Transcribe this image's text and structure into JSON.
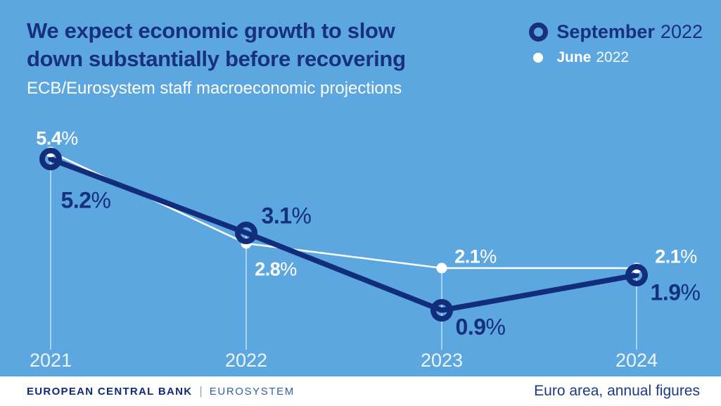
{
  "title": {
    "line1": "We expect economic growth to slow",
    "line2": "down substantially before recovering"
  },
  "subtitle": "ECB/Eurosystem staff macroeconomic projections",
  "legend": {
    "september": {
      "label": "September",
      "year": "2022"
    },
    "june": {
      "label": "June",
      "year": "2022"
    }
  },
  "chart_data": {
    "type": "line",
    "categories": [
      "2021",
      "2022",
      "2023",
      "2024"
    ],
    "series": [
      {
        "name": "September 2022",
        "marker": "ring",
        "color": "#122d7c",
        "values": [
          5.2,
          3.1,
          0.9,
          1.9
        ],
        "labels": [
          "5.2%",
          "3.1%",
          "0.9%",
          "1.9%"
        ]
      },
      {
        "name": "June 2022",
        "marker": "dot",
        "color": "#ffffff",
        "values": [
          5.4,
          2.8,
          2.1,
          2.1
        ],
        "labels": [
          "5.4%",
          "2.8%",
          "2.1%",
          "2.1%"
        ]
      }
    ],
    "unit": "%",
    "title": "We expect economic growth to slow down substantially before recovering",
    "subtitle": "ECB/Eurosystem staff macroeconomic projections",
    "note": "Euro area, annual figures",
    "xlabel": "",
    "ylabel": "",
    "ylim": [
      0,
      6
    ],
    "grid": false,
    "legend_position": "top-right"
  },
  "footer": {
    "bank": "EUROPEAN CENTRAL BANK",
    "separator": "|",
    "system": "EUROSYSTEM",
    "note": "Euro area, annual figures"
  },
  "colors": {
    "background": "#5da7e0",
    "navy": "#17307f",
    "line_navy": "#122d7c",
    "white": "#ffffff",
    "eurosystem_blue": "#2e62a6",
    "footer_navy": "#0c2b79",
    "guide_line": "rgba(255,255,255,0.65)"
  }
}
